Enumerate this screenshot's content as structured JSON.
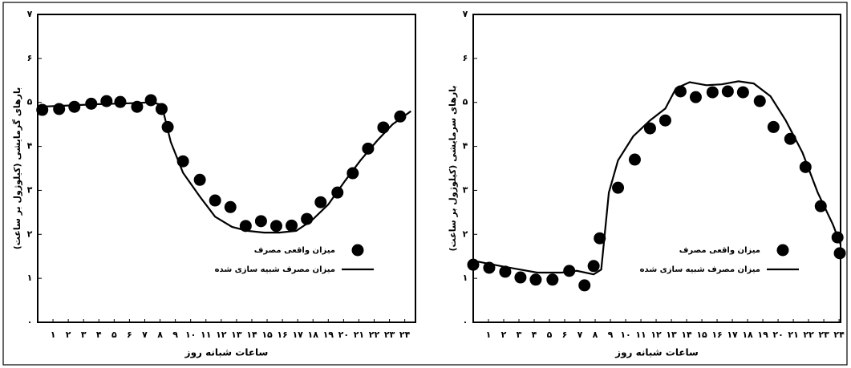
{
  "chart_data": [
    {
      "type": "line",
      "y_label": "بارهای گرمایشی (کیلوژول بر ساعت)",
      "x_label": "ساعات شبانه روز",
      "xlim": [
        0,
        24.7
      ],
      "ylim": [
        0,
        7
      ],
      "xticks": [
        {
          "value": 1,
          "label": "۱"
        },
        {
          "value": 2,
          "label": "۲"
        },
        {
          "value": 3,
          "label": "۳"
        },
        {
          "value": 4,
          "label": "۴"
        },
        {
          "value": 5,
          "label": "۵"
        },
        {
          "value": 6,
          "label": "۶"
        },
        {
          "value": 7,
          "label": "۷"
        },
        {
          "value": 8,
          "label": "۸"
        },
        {
          "value": 9,
          "label": "۹"
        },
        {
          "value": 10,
          "label": "۱۰"
        },
        {
          "value": 11,
          "label": "۱۱"
        },
        {
          "value": 12,
          "label": "۱۲"
        },
        {
          "value": 13,
          "label": "۱۳"
        },
        {
          "value": 14,
          "label": "۱۴"
        },
        {
          "value": 15,
          "label": "۱۵"
        },
        {
          "value": 16,
          "label": "۱۶"
        },
        {
          "value": 17,
          "label": "۱۷"
        },
        {
          "value": 18,
          "label": "۱۸"
        },
        {
          "value": 19,
          "label": "۱۹"
        },
        {
          "value": 20,
          "label": "۲۰"
        },
        {
          "value": 21,
          "label": "۲۱"
        },
        {
          "value": 22,
          "label": "۲۲"
        },
        {
          "value": 23,
          "label": "۲۳"
        },
        {
          "value": 24,
          "label": "۲۴"
        }
      ],
      "yticks": [
        {
          "value": 0,
          "label": "۰"
        },
        {
          "value": 1,
          "label": "۱"
        },
        {
          "value": 2,
          "label": "۲"
        },
        {
          "value": 3,
          "label": "۳"
        },
        {
          "value": 4,
          "label": "۴"
        },
        {
          "value": 5,
          "label": "۵"
        },
        {
          "value": 6,
          "label": "۶"
        },
        {
          "value": 7,
          "label": "۷"
        }
      ],
      "series": [
        {
          "name": "میزان واقعی مصرف",
          "color": "#000000",
          "mode": "markers",
          "x": [
            0.3,
            1.4,
            2.4,
            3.5,
            4.5,
            5.4,
            6.5,
            7.4,
            8.1,
            8.5,
            9.5,
            10.6,
            11.6,
            12.6,
            13.6,
            14.6,
            15.6,
            16.6,
            17.6,
            18.5,
            19.6,
            20.6,
            21.6,
            22.6,
            23.7
          ],
          "values": [
            4.83,
            4.85,
            4.9,
            4.97,
            5.03,
            5.01,
            4.9,
            5.05,
            4.85,
            4.44,
            3.66,
            3.24,
            2.77,
            2.62,
            2.19,
            2.3,
            2.19,
            2.2,
            2.35,
            2.73,
            2.95,
            3.39,
            3.95,
            4.43,
            4.68
          ]
        },
        {
          "name": "میزان مصرف شبیه سازی شده",
          "color": "#000000",
          "mode": "line",
          "x": [
            0,
            2,
            4,
            6,
            7.4,
            8.1,
            8.7,
            9.5,
            10.6,
            11.6,
            12.7,
            13.7,
            14.8,
            15.8,
            16.9,
            17.9,
            19,
            20.1,
            21.1,
            22.2,
            23.2,
            24.4
          ],
          "values": [
            4.9,
            4.93,
            4.96,
            4.98,
            5.0,
            4.95,
            4.1,
            3.4,
            2.86,
            2.4,
            2.17,
            2.08,
            2.04,
            2.04,
            2.08,
            2.31,
            2.68,
            3.22,
            3.68,
            4.13,
            4.5,
            4.8
          ]
        }
      ]
    },
    {
      "type": "line",
      "y_label": "بارهای سرمایشی (کیلوژول بر ساعت)",
      "x_label": "ساعات شبانه روز",
      "xlim": [
        0,
        24.1
      ],
      "ylim": [
        0,
        7
      ],
      "xticks": [
        {
          "value": 1,
          "label": "۱"
        },
        {
          "value": 2,
          "label": "۲"
        },
        {
          "value": 3,
          "label": "۳"
        },
        {
          "value": 4,
          "label": "۴"
        },
        {
          "value": 5,
          "label": "۵"
        },
        {
          "value": 6,
          "label": "۶"
        },
        {
          "value": 7,
          "label": "۷"
        },
        {
          "value": 8,
          "label": "۸"
        },
        {
          "value": 9,
          "label": "۹"
        },
        {
          "value": 10,
          "label": "۱۰"
        },
        {
          "value": 11,
          "label": "۱۱"
        },
        {
          "value": 12,
          "label": "۱۲"
        },
        {
          "value": 13,
          "label": "۱۳"
        },
        {
          "value": 14,
          "label": "۱۴"
        },
        {
          "value": 15,
          "label": "۱۵"
        },
        {
          "value": 16,
          "label": "۱۶"
        },
        {
          "value": 17,
          "label": "۱۷"
        },
        {
          "value": 18,
          "label": "۱۸"
        },
        {
          "value": 19,
          "label": "۱۹"
        },
        {
          "value": 20,
          "label": "۲۰"
        },
        {
          "value": 21,
          "label": "۲۱"
        },
        {
          "value": 22,
          "label": "۲۲"
        },
        {
          "value": 23,
          "label": "۲۳"
        },
        {
          "value": 24,
          "label": "۲۴"
        }
      ],
      "yticks": [
        {
          "value": 0,
          "label": "۰"
        },
        {
          "value": 1,
          "label": "۱"
        },
        {
          "value": 2,
          "label": "۲"
        },
        {
          "value": 3,
          "label": "۳"
        },
        {
          "value": 4,
          "label": "۴"
        },
        {
          "value": 5,
          "label": "۵"
        },
        {
          "value": 6,
          "label": "۶"
        },
        {
          "value": 7,
          "label": "۷"
        }
      ],
      "series": [
        {
          "name": "میزان واقعی مصرف",
          "color": "#000000",
          "mode": "markers",
          "x": [
            0,
            1.05,
            2.1,
            3.1,
            4.1,
            5.2,
            6.3,
            7.3,
            7.9,
            8.3,
            9.5,
            10.6,
            11.6,
            12.6,
            13.6,
            14.6,
            15.7,
            16.7,
            17.7,
            18.8,
            19.7,
            20.8,
            21.8,
            22.8,
            23.9,
            24.05
          ],
          "values": [
            1.31,
            1.24,
            1.15,
            1.02,
            0.97,
            0.97,
            1.17,
            0.84,
            1.28,
            1.91,
            3.06,
            3.7,
            4.41,
            4.59,
            5.25,
            5.12,
            5.23,
            5.25,
            5.23,
            5.03,
            4.44,
            4.17,
            3.53,
            2.64,
            1.93,
            1.57
          ]
        },
        {
          "name": "میزان مصرف شبیه سازی شده",
          "color": "#000000",
          "mode": "line",
          "x": [
            0,
            2.1,
            4.2,
            5.8,
            6.8,
            7.9,
            8.4,
            8.9,
            9.5,
            10.5,
            11.6,
            12.6,
            13.3,
            14.2,
            15.3,
            16.3,
            17.4,
            18.4,
            19.5,
            20.5,
            21.6,
            22.6,
            23.6,
            24.1
          ],
          "values": [
            1.4,
            1.26,
            1.13,
            1.13,
            1.17,
            1.09,
            1.2,
            2.95,
            3.68,
            4.23,
            4.59,
            4.86,
            5.32,
            5.46,
            5.39,
            5.41,
            5.48,
            5.43,
            5.14,
            4.59,
            3.86,
            2.95,
            2.22,
            1.77
          ]
        }
      ]
    }
  ]
}
